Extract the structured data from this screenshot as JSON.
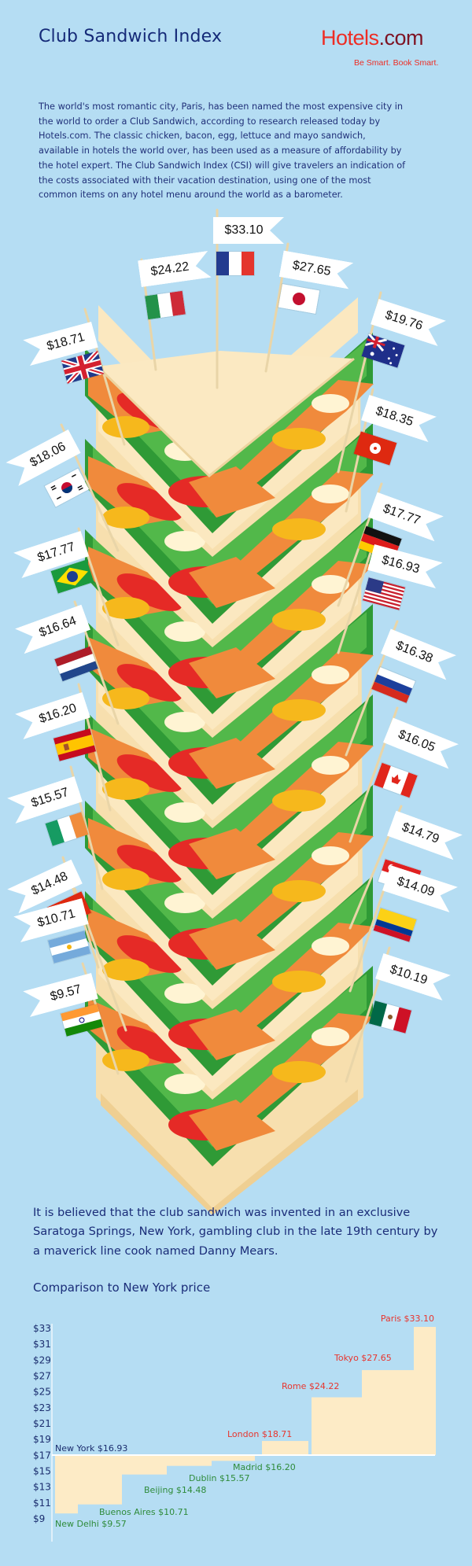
{
  "header": {
    "title": "Club Sandwich Index",
    "logo_main": "Hotels",
    "logo_suffix": ".com",
    "tagline": "Be Smart. Book Smart."
  },
  "intro": "The world's most romantic city, Paris, has been named the most expensive city in the world to order a Club Sandwich, according to research released today by Hotels.com. The classic chicken, bacon, egg, lettuce and mayo sandwich, available in hotels the world over, has been used as a measure of affordability by the hotel expert. The Club Sandwich Index (CSI) will give travelers an indication of the costs associated with their vacation destination, using one of the most common items on any hotel menu around the world as a barometer.",
  "flags": [
    {
      "price": "$33.10",
      "flag_icon": "france-flag-icon"
    },
    {
      "price": "$24.22",
      "flag_icon": "italy-flag-icon"
    },
    {
      "price": "$27.65",
      "flag_icon": "japan-flag-icon"
    },
    {
      "price": "$18.71",
      "flag_icon": "uk-flag-icon"
    },
    {
      "price": "$19.76",
      "flag_icon": "australia-flag-icon"
    },
    {
      "price": "$18.35",
      "flag_icon": "hong-kong-flag-icon"
    },
    {
      "price": "$18.06",
      "flag_icon": "south-korea-flag-icon"
    },
    {
      "price": "$17.77",
      "flag_icon": "germany-flag-icon"
    },
    {
      "price": "$17.77",
      "flag_icon": "brazil-flag-icon"
    },
    {
      "price": "$16.93",
      "flag_icon": "usa-flag-icon"
    },
    {
      "price": "$16.64",
      "flag_icon": "netherlands-flag-icon"
    },
    {
      "price": "$16.38",
      "flag_icon": "russia-flag-icon"
    },
    {
      "price": "$16.20",
      "flag_icon": "spain-flag-icon"
    },
    {
      "price": "$16.05",
      "flag_icon": "canada-flag-icon"
    },
    {
      "price": "$15.57",
      "flag_icon": "ireland-flag-icon"
    },
    {
      "price": "$14.79",
      "flag_icon": "singapore-flag-icon"
    },
    {
      "price": "$14.48",
      "flag_icon": "china-flag-icon"
    },
    {
      "price": "$14.09",
      "flag_icon": "colombia-flag-icon"
    },
    {
      "price": "$10.71",
      "flag_icon": "argentina-flag-icon"
    },
    {
      "price": "$10.19",
      "flag_icon": "mexico-flag-icon"
    },
    {
      "price": "$9.57",
      "flag_icon": "india-flag-icon"
    }
  ],
  "history": "It is believed that the club sandwich was invented in an exclusive Saratoga Springs, New York, gambling club in the late 19th century by a maverick line cook named Danny Mears.",
  "chart_data": {
    "type": "bar",
    "title": "Comparison to New York price",
    "baseline": {
      "label": "New York $16.93",
      "value": 16.93
    },
    "categories": [
      "New Delhi",
      "Buenos Aires",
      "Beijing",
      "Dublin",
      "Madrid",
      "London",
      "Rome",
      "Tokyo",
      "Paris"
    ],
    "values": [
      9.57,
      10.71,
      14.48,
      15.57,
      16.2,
      18.71,
      24.22,
      27.65,
      33.1
    ],
    "labels": [
      "New Delhi $9.57",
      "Buenos Aires $10.71",
      "Beijing $14.48",
      "Dublin $15.57",
      "Madrid $16.20",
      "London $18.71",
      "Rome $24.22",
      "Tokyo $27.65",
      "Paris $33.10"
    ],
    "y_ticks": [
      "$33",
      "$31",
      "$29",
      "$27",
      "$25",
      "$23",
      "$21",
      "$19",
      "$17",
      "$15",
      "$13",
      "$11",
      "$9"
    ],
    "ylim": [
      9,
      33
    ],
    "grid": false,
    "colors": {
      "above": "#e8352e",
      "below": "#2e8b3a",
      "baseline_label": "#1b2d6e",
      "fill": "#fdebc6"
    }
  }
}
